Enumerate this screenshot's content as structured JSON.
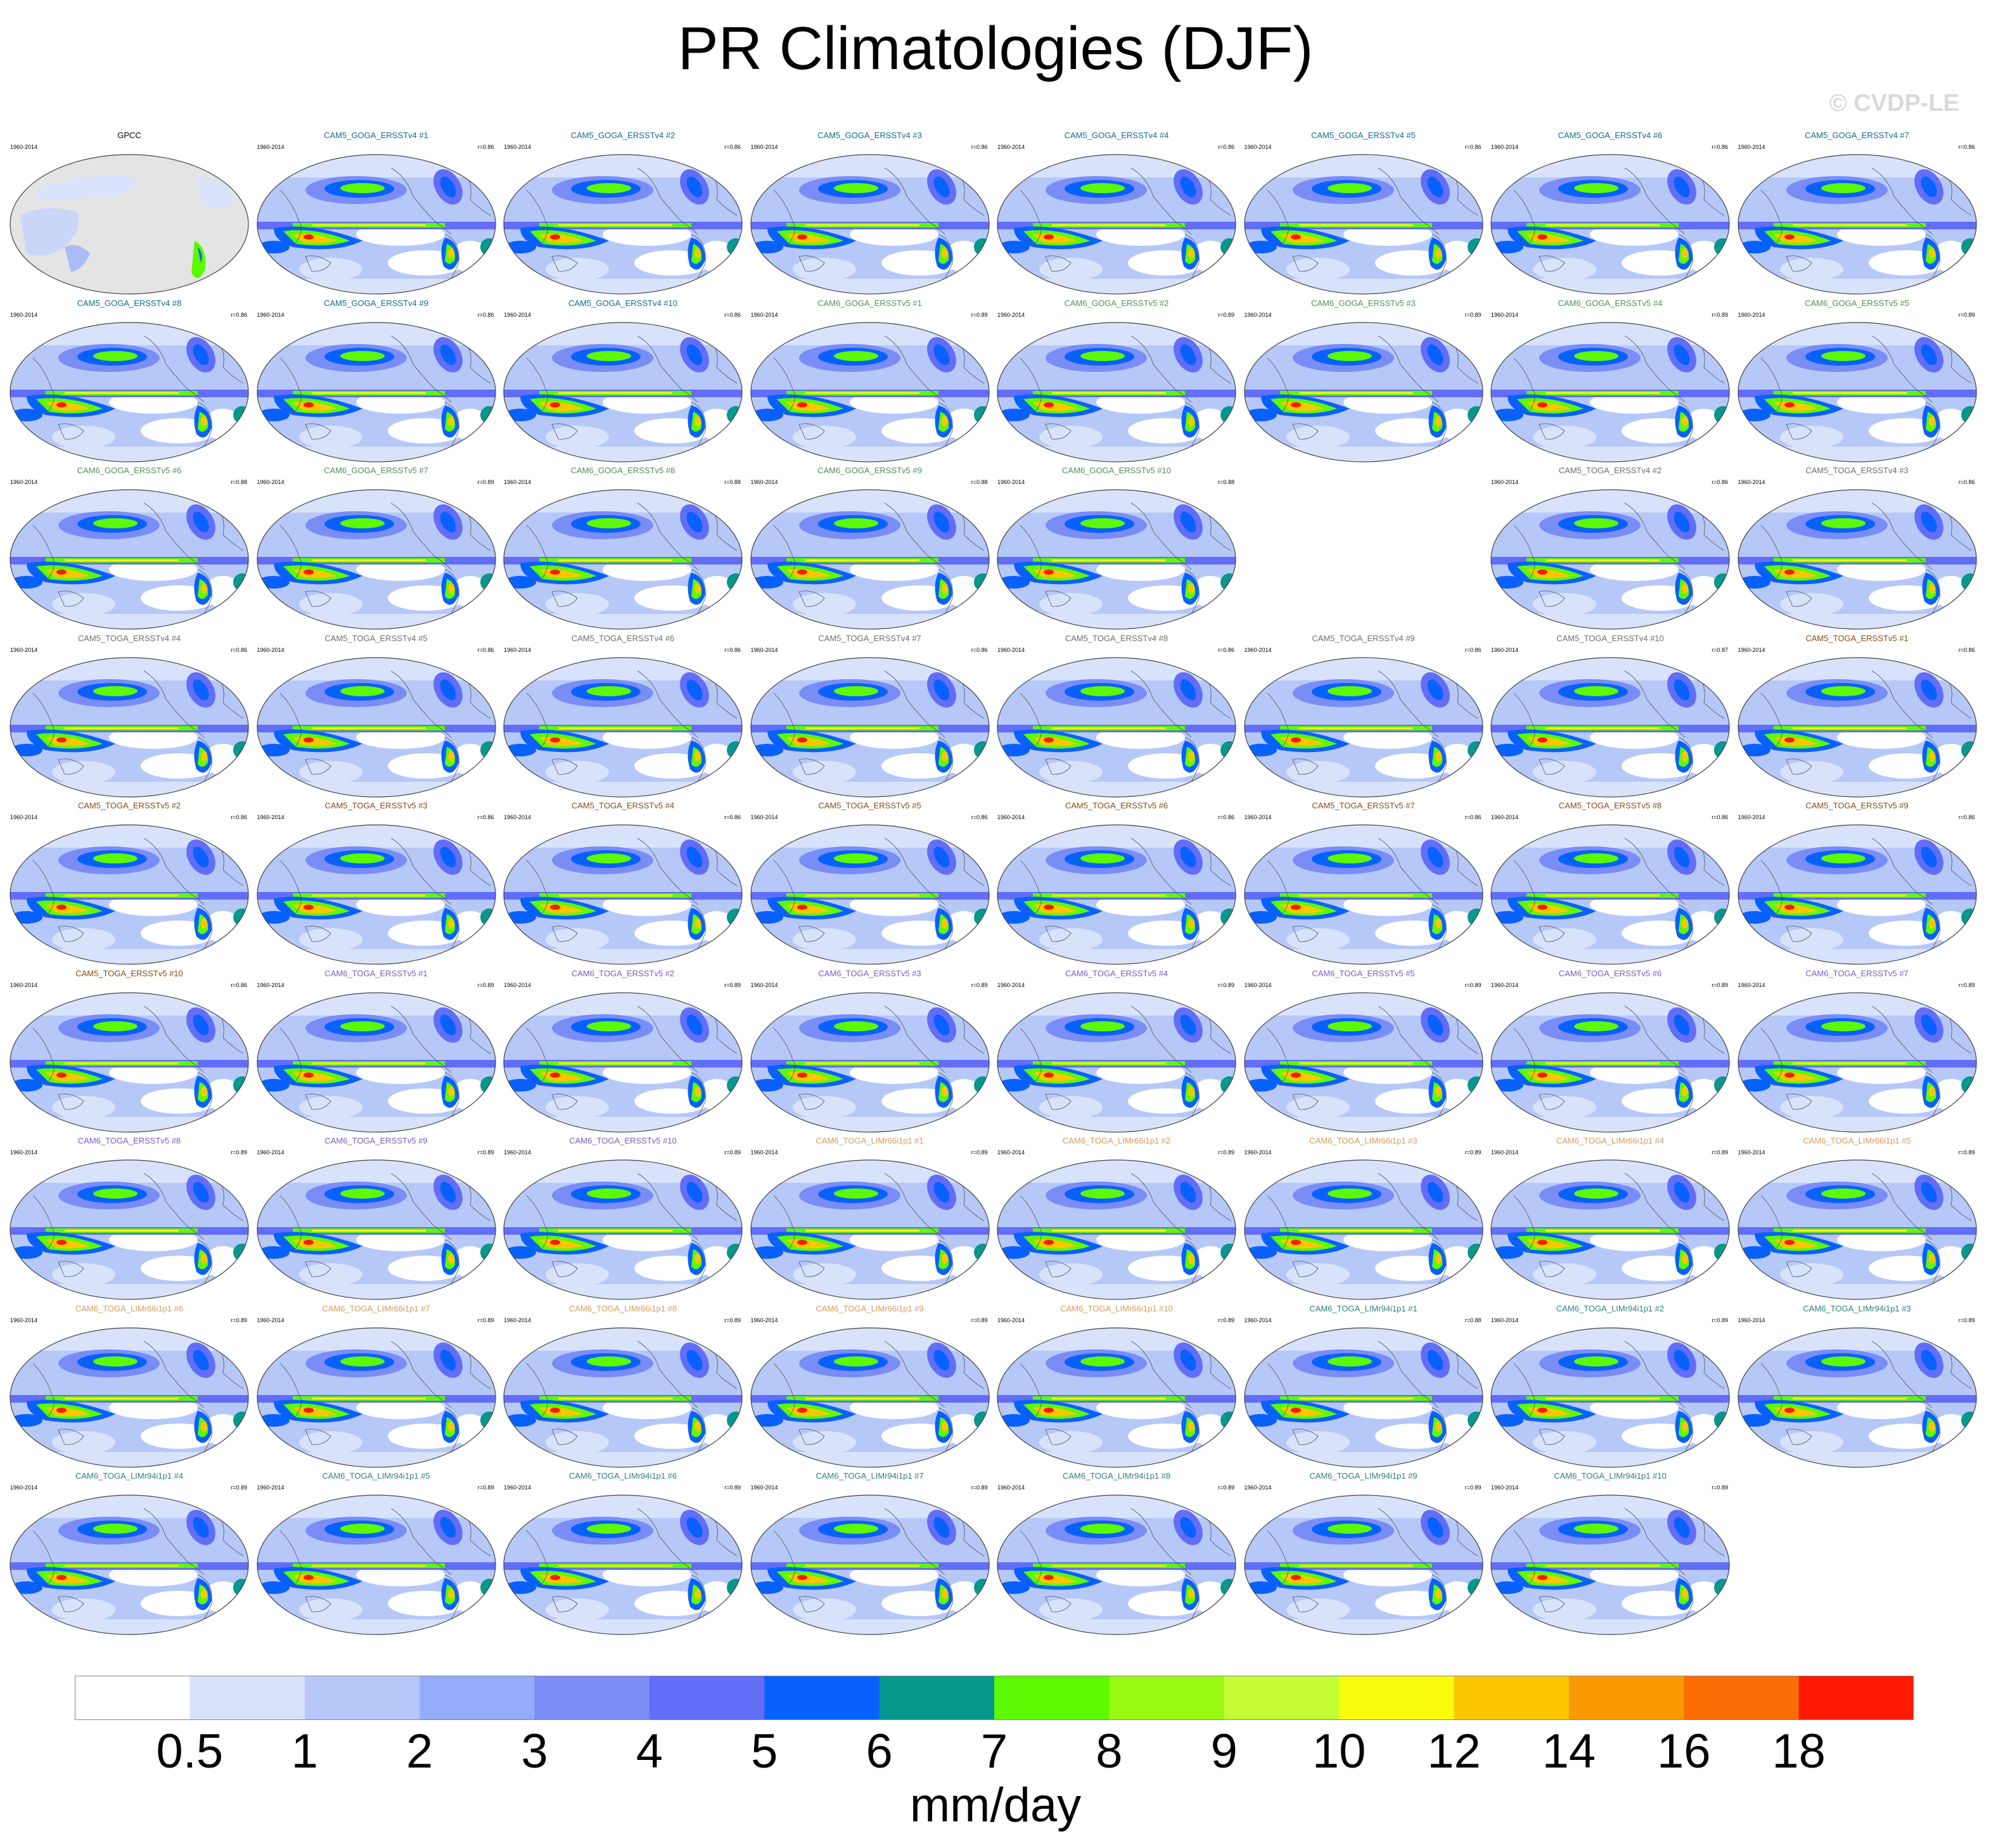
{
  "title": "PR Climatologies (DJF)",
  "watermark": "© CVDP-LE",
  "units": "mm/day",
  "colorbar": {
    "ticks": [
      "0.5",
      "1",
      "2",
      "3",
      "4",
      "5",
      "6",
      "7",
      "8",
      "9",
      "10",
      "12",
      "14",
      "16",
      "18"
    ],
    "colors": [
      "#ffffff",
      "#d8e2fb",
      "#b6c8f8",
      "#94adfa",
      "#7a8cf6",
      "#626ef7",
      "#0961fd",
      "#07978c",
      "#5cf902",
      "#98f912",
      "#c4fc36",
      "#fafc0c",
      "#fac602",
      "#fa9a03",
      "#fa6c04",
      "#fe1902"
    ]
  },
  "palette": {
    "obs_title": "#000000",
    "cam5_goga_v4": "#0d6e8c",
    "cam6_goga_v5": "#4f8f5a",
    "cam5_toga_v4": "#6e6e6e",
    "cam5_toga_v5": "#8a4a12",
    "cam6_toga_v5": "#7b5bc2",
    "cam6_toga_lim66": "#d69a5e",
    "cam6_toga_lim94": "#2e7f7d"
  },
  "panels": [
    {
      "title": "GPCC",
      "years": "1960-2014",
      "corr": "",
      "group": "obs_title",
      "obs": true
    },
    {
      "title": "CAM5_GOGA_ERSSTv4 #1",
      "years": "1960-2014",
      "corr": "r=0.86",
      "group": "cam5_goga_v4"
    },
    {
      "title": "CAM5_GOGA_ERSSTv4 #2",
      "years": "1960-2014",
      "corr": "r=0.86",
      "group": "cam5_goga_v4"
    },
    {
      "title": "CAM5_GOGA_ERSSTv4 #3",
      "years": "1960-2014",
      "corr": "r=0.86",
      "group": "cam5_goga_v4"
    },
    {
      "title": "CAM5_GOGA_ERSSTv4 #4",
      "years": "1960-2014",
      "corr": "r=0.86",
      "group": "cam5_goga_v4"
    },
    {
      "title": "CAM5_GOGA_ERSSTv4 #5",
      "years": "1960-2014",
      "corr": "r=0.86",
      "group": "cam5_goga_v4"
    },
    {
      "title": "CAM5_GOGA_ERSSTv4 #6",
      "years": "1960-2014",
      "corr": "r=0.86",
      "group": "cam5_goga_v4"
    },
    {
      "title": "CAM5_GOGA_ERSSTv4 #7",
      "years": "1960-2014",
      "corr": "r=0.86",
      "group": "cam5_goga_v4"
    },
    {
      "title": "CAM5_GOGA_ERSSTv4 #8",
      "years": "1960-2014",
      "corr": "r=0.86",
      "group": "cam5_goga_v4"
    },
    {
      "title": "CAM5_GOGA_ERSSTv4 #9",
      "years": "1960-2014",
      "corr": "r=0.86",
      "group": "cam5_goga_v4"
    },
    {
      "title": "CAM5_GOGA_ERSSTv4 #10",
      "years": "1960-2014",
      "corr": "r=0.86",
      "group": "cam5_goga_v4"
    },
    {
      "title": "CAM6_GOGA_ERSSTv5 #1",
      "years": "1960-2014",
      "corr": "r=0.89",
      "group": "cam6_goga_v5"
    },
    {
      "title": "CAM6_GOGA_ERSSTv5 #2",
      "years": "1960-2014",
      "corr": "r=0.89",
      "group": "cam6_goga_v5"
    },
    {
      "title": "CAM6_GOGA_ERSSTv5 #3",
      "years": "1960-2014",
      "corr": "r=0.89",
      "group": "cam6_goga_v5"
    },
    {
      "title": "CAM6_GOGA_ERSSTv5 #4",
      "years": "1960-2014",
      "corr": "r=0.89",
      "group": "cam6_goga_v5"
    },
    {
      "title": "CAM6_GOGA_ERSSTv5 #5",
      "years": "1960-2014",
      "corr": "r=0.89",
      "group": "cam6_goga_v5"
    },
    {
      "title": "CAM6_GOGA_ERSSTv5 #6",
      "years": "1960-2014",
      "corr": "r=0.88",
      "group": "cam6_goga_v5"
    },
    {
      "title": "CAM6_GOGA_ERSSTv5 #7",
      "years": "1960-2014",
      "corr": "r=0.89",
      "group": "cam6_goga_v5"
    },
    {
      "title": "CAM6_GOGA_ERSSTv5 #8",
      "years": "1960-2014",
      "corr": "r=0.88",
      "group": "cam6_goga_v5"
    },
    {
      "title": "CAM6_GOGA_ERSSTv5 #9",
      "years": "1960-2014",
      "corr": "r=0.88",
      "group": "cam6_goga_v5"
    },
    {
      "title": "CAM6_GOGA_ERSSTv5 #10",
      "years": "1960-2014",
      "corr": "r=0.88",
      "group": "cam6_goga_v5"
    },
    {
      "title": "CAM5_TOGA_ERSSTv4 #2",
      "years": "1960-2014",
      "corr": "r=0.86",
      "group": "cam5_toga_v4"
    },
    {
      "title": "CAM5_TOGA_ERSSTv4 #3",
      "years": "1960-2014",
      "corr": "r=0.86",
      "group": "cam5_toga_v4"
    },
    {
      "title": "CAM5_TOGA_ERSSTv4 #4",
      "years": "1960-2014",
      "corr": "r=0.86",
      "group": "cam5_toga_v4"
    },
    {
      "title": "CAM5_TOGA_ERSSTv4 #5",
      "years": "1960-2014",
      "corr": "r=0.86",
      "group": "cam5_toga_v4"
    },
    {
      "title": "CAM5_TOGA_ERSSTv4 #6",
      "years": "1960-2014",
      "corr": "r=0.86",
      "group": "cam5_toga_v4"
    },
    {
      "title": "CAM5_TOGA_ERSSTv4 #7",
      "years": "1960-2014",
      "corr": "r=0.86",
      "group": "cam5_toga_v4"
    },
    {
      "title": "CAM5_TOGA_ERSSTv4 #8",
      "years": "1960-2014",
      "corr": "r=0.86",
      "group": "cam5_toga_v4"
    },
    {
      "title": "CAM5_TOGA_ERSSTv4 #9",
      "years": "1960-2014",
      "corr": "r=0.86",
      "group": "cam5_toga_v4"
    },
    {
      "title": "CAM5_TOGA_ERSSTv4 #10",
      "years": "1960-2014",
      "corr": "r=0.87",
      "group": "cam5_toga_v4"
    },
    {
      "title": "CAM5_TOGA_ERSSTv5 #1",
      "years": "1960-2014",
      "corr": "r=0.86",
      "group": "cam5_toga_v5"
    },
    {
      "title": "CAM5_TOGA_ERSSTv5 #2",
      "years": "1960-2014",
      "corr": "r=0.86",
      "group": "cam5_toga_v5"
    },
    {
      "title": "CAM5_TOGA_ERSSTv5 #3",
      "years": "1960-2014",
      "corr": "r=0.86",
      "group": "cam5_toga_v5"
    },
    {
      "title": "CAM5_TOGA_ERSSTv5 #4",
      "years": "1960-2014",
      "corr": "r=0.86",
      "group": "cam5_toga_v5"
    },
    {
      "title": "CAM5_TOGA_ERSSTv5 #5",
      "years": "1960-2014",
      "corr": "r=0.86",
      "group": "cam5_toga_v5"
    },
    {
      "title": "CAM5_TOGA_ERSSTv5 #6",
      "years": "1960-2014",
      "corr": "r=0.86",
      "group": "cam5_toga_v5"
    },
    {
      "title": "CAM5_TOGA_ERSSTv5 #7",
      "years": "1960-2014",
      "corr": "r=0.86",
      "group": "cam5_toga_v5"
    },
    {
      "title": "CAM5_TOGA_ERSSTv5 #8",
      "years": "1960-2014",
      "corr": "r=0.86",
      "group": "cam5_toga_v5"
    },
    {
      "title": "CAM5_TOGA_ERSSTv5 #9",
      "years": "1960-2014",
      "corr": "r=0.86",
      "group": "cam5_toga_v5"
    },
    {
      "title": "CAM5_TOGA_ERSSTv5 #10",
      "years": "1960-2014",
      "corr": "r=0.86",
      "group": "cam5_toga_v5"
    },
    {
      "title": "CAM6_TOGA_ERSSTv5 #1",
      "years": "1960-2014",
      "corr": "r=0.89",
      "group": "cam6_toga_v5"
    },
    {
      "title": "CAM6_TOGA_ERSSTv5 #2",
      "years": "1960-2014",
      "corr": "r=0.89",
      "group": "cam6_toga_v5"
    },
    {
      "title": "CAM6_TOGA_ERSSTv5 #3",
      "years": "1960-2014",
      "corr": "r=0.89",
      "group": "cam6_toga_v5"
    },
    {
      "title": "CAM6_TOGA_ERSSTv5 #4",
      "years": "1960-2014",
      "corr": "r=0.89",
      "group": "cam6_toga_v5"
    },
    {
      "title": "CAM6_TOGA_ERSSTv5 #5",
      "years": "1960-2014",
      "corr": "r=0.89",
      "group": "cam6_toga_v5"
    },
    {
      "title": "CAM6_TOGA_ERSSTv5 #6",
      "years": "1960-2014",
      "corr": "r=0.89",
      "group": "cam6_toga_v5"
    },
    {
      "title": "CAM6_TOGA_ERSSTv5 #7",
      "years": "1960-2014",
      "corr": "r=0.89",
      "group": "cam6_toga_v5"
    },
    {
      "title": "CAM6_TOGA_ERSSTv5 #8",
      "years": "1960-2014",
      "corr": "r=0.89",
      "group": "cam6_toga_v5"
    },
    {
      "title": "CAM6_TOGA_ERSSTv5 #9",
      "years": "1960-2014",
      "corr": "r=0.89",
      "group": "cam6_toga_v5"
    },
    {
      "title": "CAM6_TOGA_ERSSTv5 #10",
      "years": "1960-2014",
      "corr": "r=0.89",
      "group": "cam6_toga_v5"
    },
    {
      "title": "CAM6_TOGA_LIMr66i1p1 #1",
      "years": "1960-2014",
      "corr": "r=0.89",
      "group": "cam6_toga_lim66"
    },
    {
      "title": "CAM6_TOGA_LIMr66i1p1 #2",
      "years": "1960-2014",
      "corr": "r=0.89",
      "group": "cam6_toga_lim66"
    },
    {
      "title": "CAM6_TOGA_LIMr66i1p1 #3",
      "years": "1960-2014",
      "corr": "r=0.89",
      "group": "cam6_toga_lim66"
    },
    {
      "title": "CAM6_TOGA_LIMr66i1p1 #4",
      "years": "1960-2014",
      "corr": "r=0.89",
      "group": "cam6_toga_lim66"
    },
    {
      "title": "CAM6_TOGA_LIMr66i1p1 #5",
      "years": "1960-2014",
      "corr": "r=0.89",
      "group": "cam6_toga_lim66"
    },
    {
      "title": "CAM6_TOGA_LIMr66i1p1 #6",
      "years": "1960-2014",
      "corr": "r=0.89",
      "group": "cam6_toga_lim66"
    },
    {
      "title": "CAM6_TOGA_LIMr66i1p1 #7",
      "years": "1960-2014",
      "corr": "r=0.89",
      "group": "cam6_toga_lim66"
    },
    {
      "title": "CAM6_TOGA_LIMr66i1p1 #8",
      "years": "1960-2014",
      "corr": "r=0.89",
      "group": "cam6_toga_lim66"
    },
    {
      "title": "CAM6_TOGA_LIMr66i1p1 #9",
      "years": "1960-2014",
      "corr": "r=0.89",
      "group": "cam6_toga_lim66"
    },
    {
      "title": "CAM6_TOGA_LIMr66i1p1 #10",
      "years": "1960-2014",
      "corr": "r=0.89",
      "group": "cam6_toga_lim66"
    },
    {
      "title": "CAM6_TOGA_LIMr94i1p1 #1",
      "years": "1960-2014",
      "corr": "r=0.88",
      "group": "cam6_toga_lim94"
    },
    {
      "title": "CAM6_TOGA_LIMr94i1p1 #2",
      "years": "1960-2014",
      "corr": "r=0.89",
      "group": "cam6_toga_lim94"
    },
    {
      "title": "CAM6_TOGA_LIMr94i1p1 #3",
      "years": "1960-2014",
      "corr": "r=0.89",
      "group": "cam6_toga_lim94"
    },
    {
      "title": "CAM6_TOGA_LIMr94i1p1 #4",
      "years": "1960-2014",
      "corr": "r=0.89",
      "group": "cam6_toga_lim94"
    },
    {
      "title": "CAM6_TOGA_LIMr94i1p1 #5",
      "years": "1960-2014",
      "corr": "r=0.89",
      "group": "cam6_toga_lim94"
    },
    {
      "title": "CAM6_TOGA_LIMr94i1p1 #6",
      "years": "1960-2014",
      "corr": "r=0.89",
      "group": "cam6_toga_lim94"
    },
    {
      "title": "CAM6_TOGA_LIMr94i1p1 #7",
      "years": "1960-2014",
      "corr": "r=0.89",
      "group": "cam6_toga_lim94"
    },
    {
      "title": "CAM6_TOGA_LIMr94i1p1 #8",
      "years": "1960-2014",
      "corr": "r=0.89",
      "group": "cam6_toga_lim94"
    },
    {
      "title": "CAM6_TOGA_LIMr94i1p1 #9",
      "years": "1960-2014",
      "corr": "r=0.89",
      "group": "cam6_toga_lim94"
    },
    {
      "title": "CAM6_TOGA_LIMr94i1p1 #10",
      "years": "1960-2014",
      "corr": "r=0.89",
      "group": "cam6_toga_lim94"
    }
  ]
}
